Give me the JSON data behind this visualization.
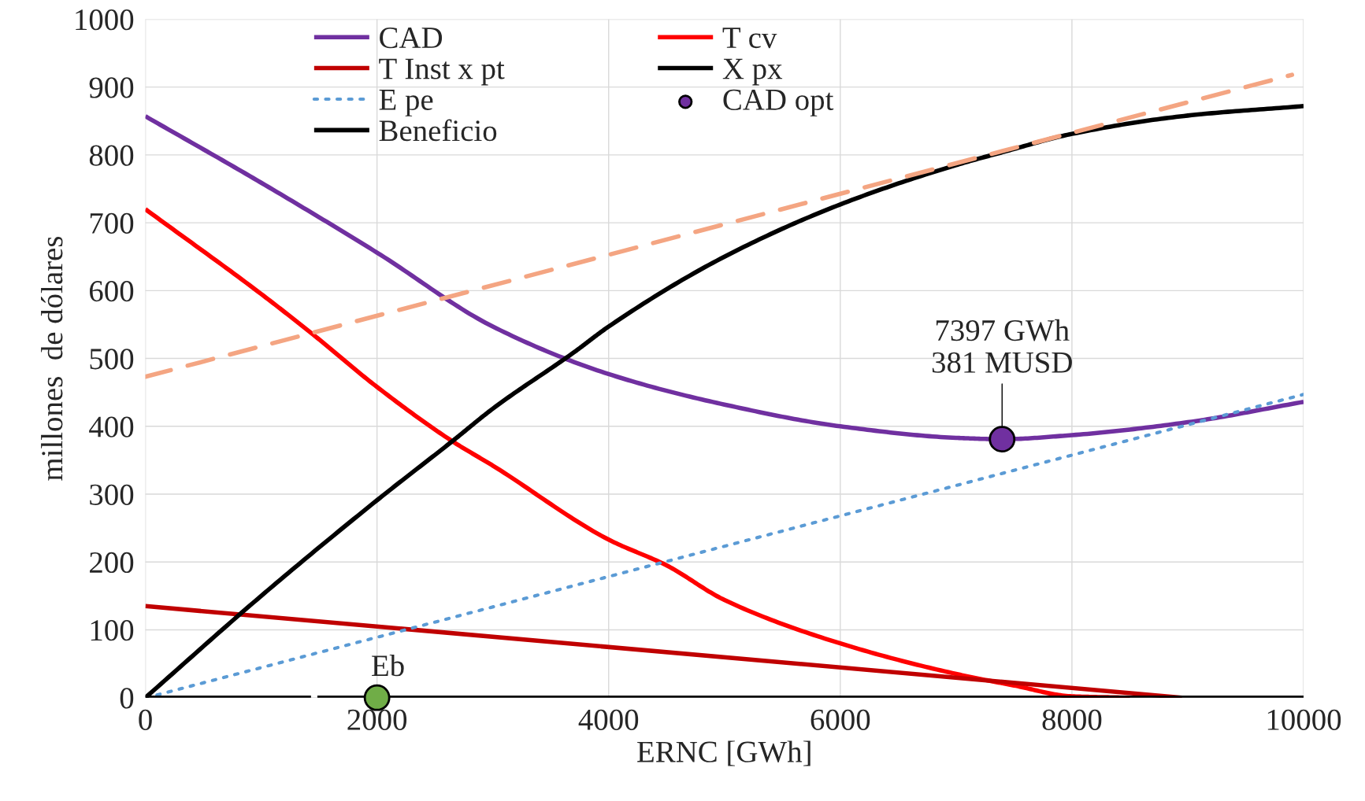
{
  "chart_data": {
    "type": "line",
    "xlabel": "ERNC [GWh]",
    "ylabel": "millones  de dólares",
    "xlim": [
      0,
      10000
    ],
    "ylim": [
      0,
      1000
    ],
    "xticks": [
      0,
      2000,
      4000,
      6000,
      8000,
      10000
    ],
    "yticks": [
      0,
      100,
      200,
      300,
      400,
      500,
      600,
      700,
      800,
      900,
      1000
    ],
    "grid": true,
    "legend": "top",
    "series": [
      {
        "name": "CAD",
        "color": "#7030a0",
        "line_style": "solid",
        "x": [
          0,
          1000,
          2000,
          3000,
          4000,
          5000,
          6000,
          7000,
          7397,
          8000,
          9000,
          10000
        ],
        "values": [
          857,
          759,
          656,
          547,
          477,
          432,
          400,
          383,
          381,
          387,
          406,
          436
        ]
      },
      {
        "name": "T cv",
        "color": "#ff0000",
        "line_style": "solid",
        "x": [
          0,
          1000,
          1450,
          2000,
          2650,
          3000,
          4000,
          4500,
          5000,
          6000,
          7000,
          7500,
          8000,
          8500
        ],
        "values": [
          720,
          595,
          535,
          458,
          378,
          342,
          233,
          195,
          144,
          80,
          35,
          18,
          2,
          0
        ]
      },
      {
        "name": "T Inst x pt",
        "color": "#c00000",
        "line_style": "solid",
        "x": [
          0,
          8950
        ],
        "values": [
          135,
          0
        ]
      },
      {
        "name": "X px",
        "color": "#000000",
        "line_style": "solid",
        "x": [
          0,
          1000,
          2000,
          2650,
          3000,
          3700,
          4000,
          5000,
          6000,
          7000,
          7400,
          8000,
          9000,
          10000
        ],
        "values": [
          0,
          150,
          291,
          378,
          426,
          509,
          547,
          650,
          727,
          785,
          804,
          831,
          858,
          872
        ]
      },
      {
        "name": "E pe",
        "color": "#5b9bd5",
        "line_style": "dotted",
        "x": [
          100,
          10000
        ],
        "values": [
          4,
          447
        ]
      },
      {
        "name": "CAD opt",
        "type": "scatter",
        "marker": "circle",
        "color": "#7030a0",
        "x": [
          7397
        ],
        "values": [
          381
        ]
      },
      {
        "name": "Beneficio",
        "color": "#000000",
        "line_style": "solid",
        "x": [
          0,
          1430,
          1460,
          1485,
          10000
        ],
        "values": [
          0,
          0,
          null,
          0,
          0
        ]
      },
      {
        "color": "#f4a582",
        "line_style": "dashed",
        "x": [
          0,
          9900
        ],
        "values": [
          473,
          918
        ]
      },
      {
        "type": "scatter",
        "marker": "circle",
        "color": "#70ad47",
        "x": [
          2000
        ],
        "values": [
          0
        ]
      }
    ],
    "annotations": [
      {
        "text": "7397 GWh\n381 MUSD",
        "x": 7397,
        "y": 381
      },
      {
        "text": "Eb",
        "x": 2000,
        "y": 0
      }
    ]
  }
}
